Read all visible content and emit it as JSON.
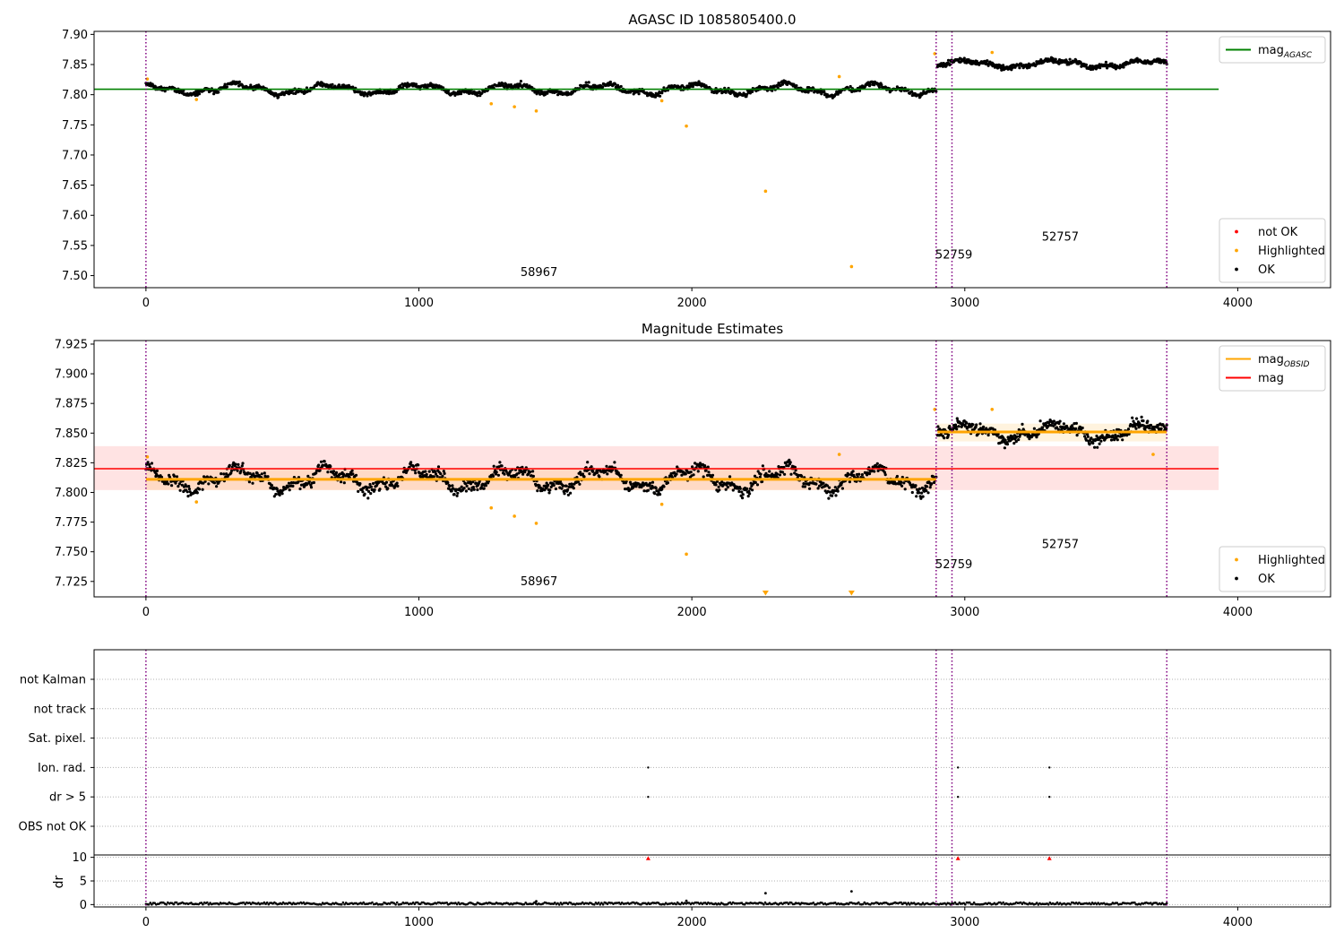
{
  "chart_data": [
    {
      "type": "scatter",
      "title": "AGASC ID 1085805400.0",
      "xlim": [
        -190,
        4340
      ],
      "ylim": [
        7.48,
        7.905
      ],
      "xticks": [
        0,
        1000,
        2000,
        3000,
        4000
      ],
      "yticks": [
        7.5,
        7.55,
        7.6,
        7.65,
        7.7,
        7.75,
        7.8,
        7.85,
        7.9
      ],
      "ytick_decimals": 2,
      "grid": false,
      "vlines": [
        0,
        2895,
        2953,
        3740
      ],
      "hlines": [
        {
          "y": 7.809,
          "x0": -190,
          "x1": 3930,
          "color": "#008000"
        }
      ],
      "obsid_labels": [
        {
          "x": 1440,
          "y": 7.499,
          "text": "58967"
        },
        {
          "x": 2960,
          "y": 7.528,
          "text": "52759"
        },
        {
          "x": 3350,
          "y": 7.558,
          "text": "52757"
        }
      ],
      "series": [
        {
          "name": "OK",
          "kind": "ok",
          "color": "#000000",
          "segments": [
            {
              "x0": 0,
              "x1": 2895,
              "base": 7.809,
              "amp": 0.007,
              "noise": 0.004,
              "n": 1200,
              "seed": 11
            },
            {
              "x0": 2900,
              "x1": 3740,
              "base": 7.851,
              "amp": 0.005,
              "noise": 0.004,
              "n": 420,
              "seed": 12
            }
          ]
        },
        {
          "name": "Highlighted",
          "kind": "points",
          "color": "#FFA500",
          "points": [
            [
              5,
              7.826
            ],
            [
              185,
              7.792
            ],
            [
              1265,
              7.785
            ],
            [
              1350,
              7.78
            ],
            [
              1430,
              7.773
            ],
            [
              1890,
              7.79
            ],
            [
              1980,
              7.748
            ],
            [
              2270,
              7.64
            ],
            [
              2540,
              7.83
            ],
            [
              2585,
              7.515
            ],
            [
              2890,
              7.868
            ],
            [
              3100,
              7.87
            ]
          ]
        },
        {
          "name": "not OK",
          "kind": "points",
          "color": "#FF0000",
          "points": []
        }
      ],
      "legend_upper": [
        {
          "label": "mag",
          "sub": "AGASC",
          "color": "#008000",
          "style": "line"
        }
      ],
      "legend_lower": [
        {
          "label": "not OK",
          "color": "#FF0000",
          "style": "dot"
        },
        {
          "label": "Highlighted",
          "color": "#FFA500",
          "style": "dot"
        },
        {
          "label": "OK",
          "color": "#000000",
          "style": "dot"
        }
      ]
    },
    {
      "type": "scatter",
      "title": "Magnitude Estimates",
      "xlim": [
        -190,
        4340
      ],
      "ylim": [
        7.712,
        7.928
      ],
      "xticks": [
        0,
        1000,
        2000,
        3000,
        4000
      ],
      "yticks": [
        7.725,
        7.75,
        7.775,
        7.8,
        7.825,
        7.85,
        7.875,
        7.9,
        7.925
      ],
      "ytick_decimals": 3,
      "grid": false,
      "vlines": [
        0,
        2895,
        2953,
        3740
      ],
      "band": {
        "y0": 7.802,
        "y1": 7.839,
        "x0": -190,
        "x1": 3930,
        "color": "#FF0000",
        "opacity": 0.11
      },
      "hlines": [
        {
          "y": 7.82,
          "x0": -190,
          "x1": 3930,
          "color": "#FF0000"
        },
        {
          "y": 7.811,
          "x0": 0,
          "x1": 2895,
          "color": "#FFA500",
          "width": 3
        },
        {
          "y": 7.851,
          "x0": 2900,
          "x1": 3740,
          "color": "#FFA500",
          "width": 3
        }
      ],
      "obsid_bands": [
        {
          "x0": 0,
          "x1": 2895,
          "y0": 7.802,
          "y1": 7.82
        },
        {
          "x0": 2900,
          "x1": 3740,
          "y0": 7.843,
          "y1": 7.858
        }
      ],
      "obsid_labels": [
        {
          "x": 1440,
          "y": 7.722,
          "text": "58967"
        },
        {
          "x": 2960,
          "y": 7.736,
          "text": "52759"
        },
        {
          "x": 3350,
          "y": 7.753,
          "text": "52757"
        }
      ],
      "series": [
        {
          "name": "OK",
          "kind": "ok",
          "color": "#000000",
          "segments": [
            {
              "x0": 0,
              "x1": 2895,
              "base": 7.811,
              "amp": 0.008,
              "noise": 0.005,
              "n": 1200,
              "seed": 21
            },
            {
              "x0": 2900,
              "x1": 3740,
              "base": 7.851,
              "amp": 0.006,
              "noise": 0.005,
              "n": 420,
              "seed": 22
            }
          ]
        },
        {
          "name": "Highlighted",
          "kind": "points",
          "color": "#FFA500",
          "points": [
            [
              5,
              7.83
            ],
            [
              185,
              7.792
            ],
            [
              1265,
              7.787
            ],
            [
              1350,
              7.78
            ],
            [
              1430,
              7.774
            ],
            [
              1890,
              7.79
            ],
            [
              1980,
              7.748
            ],
            [
              2540,
              7.832
            ],
            [
              2890,
              7.87
            ],
            [
              3100,
              7.87
            ],
            [
              3690,
              7.832
            ]
          ]
        },
        {
          "name": "Highlighted",
          "kind": "triangles",
          "color": "#FFA500",
          "points": [
            [
              2270,
              7.714
            ],
            [
              2585,
              7.714
            ]
          ]
        }
      ],
      "legend_upper": [
        {
          "label": "mag",
          "sub": "OBSID",
          "color": "#FFA500",
          "style": "line"
        },
        {
          "label": "mag",
          "sub": "",
          "color": "#FF0000",
          "style": "line"
        }
      ],
      "legend_lower": [
        {
          "label": "Highlighted",
          "color": "#FFA500",
          "style": "dot"
        },
        {
          "label": "OK",
          "color": "#000000",
          "style": "dot"
        }
      ]
    },
    {
      "type": "scatter",
      "title": "",
      "xlim": [
        -190,
        4340
      ],
      "xticks": [
        0,
        1000,
        2000,
        3000,
        4000
      ],
      "vlines": [
        0,
        2895,
        2953,
        3740
      ],
      "flags": [
        "not Kalman",
        "not track",
        "Sat. pixel.",
        "Ion. rad.",
        "dr > 5",
        "OBS not OK"
      ],
      "flag_points": [
        {
          "flag": "Ion. rad.",
          "x": [
            1840,
            2975,
            3310
          ]
        },
        {
          "flag": "dr > 5",
          "x": [
            1840,
            2975,
            3310
          ]
        }
      ],
      "dr": {
        "ylabel": "dr",
        "ylim": [
          -0.5,
          10.5
        ],
        "yticks": [
          0,
          5,
          10
        ],
        "baseline": {
          "x0": 0,
          "x1": 3740,
          "n": 700,
          "max": 0.45,
          "seed": 31
        },
        "outliers": [
          [
            2270,
            2.4
          ],
          [
            2585,
            2.8
          ],
          [
            1430,
            0.7
          ],
          [
            1980,
            0.8
          ]
        ],
        "clipped": [
          [
            1840,
            9.8
          ],
          [
            2975,
            9.8
          ],
          [
            3310,
            9.8
          ]
        ],
        "clipped_color": "#FF0000"
      }
    }
  ]
}
